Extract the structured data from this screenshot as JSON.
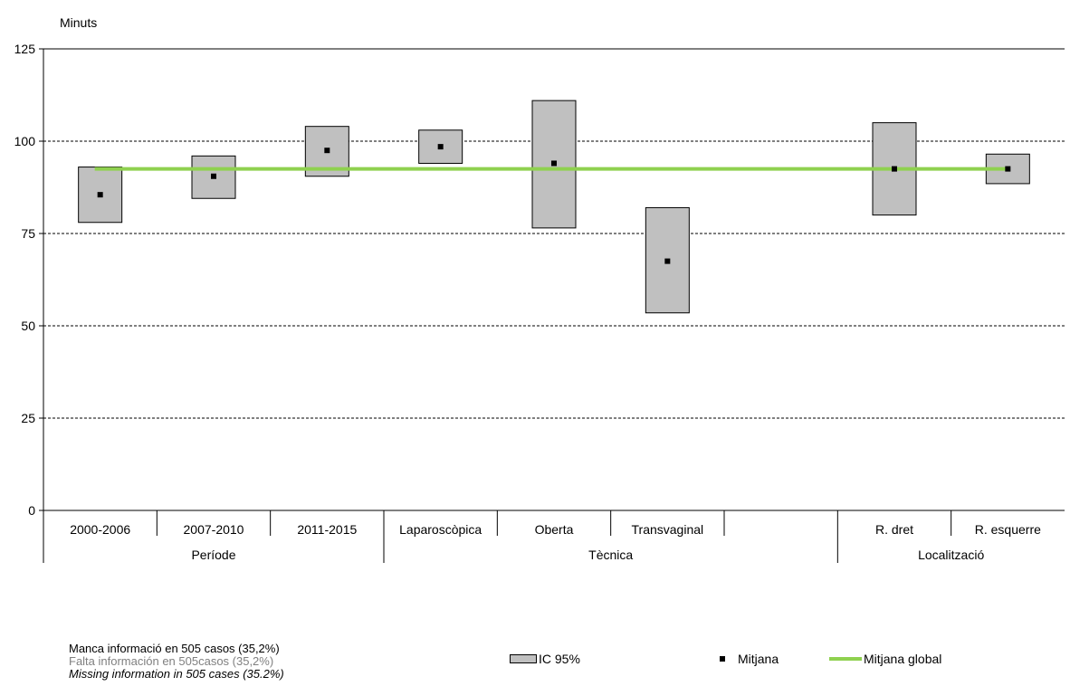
{
  "chart_data": {
    "type": "box-range",
    "ylabel": "Minuts",
    "ylim": [
      0,
      125
    ],
    "yticks": [
      0,
      25,
      50,
      75,
      100,
      125
    ],
    "grid": true,
    "categories": [
      "2000-2006",
      "2007-2010",
      "2011-2015",
      "Laparoscòpica",
      "Oberta",
      "Transvaginal",
      "",
      "R. dret",
      "R. esquerre"
    ],
    "groups": [
      {
        "label": "Període",
        "span": [
          0,
          2
        ]
      },
      {
        "label": "Tècnica",
        "span": [
          3,
          6
        ]
      },
      {
        "label": "Localització",
        "span": [
          7,
          8
        ]
      }
    ],
    "series": [
      {
        "name": "IC 95%",
        "low": [
          78,
          84.5,
          90.5,
          94,
          76.5,
          53.5,
          null,
          80,
          88.5
        ],
        "high": [
          93,
          96,
          104,
          103,
          111,
          82,
          null,
          105,
          96.5
        ]
      },
      {
        "name": "Mitjana",
        "values": [
          85.5,
          90.5,
          97.5,
          98.5,
          94,
          67.5,
          null,
          92.5,
          92.5
        ]
      },
      {
        "name": "Mitjana global",
        "value": 92.5
      }
    ],
    "legend_position": "bottom"
  },
  "notes": {
    "catalan": "Manca informació en  505 casos (35,2%)",
    "spanish": "Falta información en 505casos (35,2%)",
    "english": "Missing information in 505 cases (35.2%)"
  },
  "colors": {
    "box_fill": "#c0c0c0",
    "global_line": "#8fd14f",
    "mean_marker": "#000000",
    "spanish_note": "#808080"
  }
}
